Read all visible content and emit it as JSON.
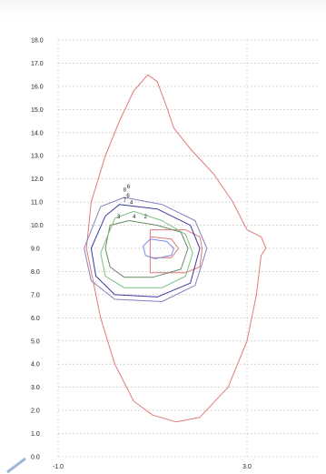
{
  "chart_data": {
    "type": "line",
    "title": "",
    "xlabel": "",
    "ylabel": "",
    "xlim": [
      -1.0,
      4.5
    ],
    "ylim": [
      0.0,
      18.0
    ],
    "x_ticks": [
      "-1.0",
      "3.0"
    ],
    "x_tick_values": [
      -1.0,
      3.0
    ],
    "y_ticks": [
      "0.0",
      "1.0",
      "2.0",
      "3.0",
      "4.0",
      "5.0",
      "6.0",
      "7.0",
      "8.0",
      "9.0",
      "10.0",
      "11.0",
      "12.0",
      "13.0",
      "14.0",
      "15.0",
      "16.0",
      "17.0",
      "18.0"
    ],
    "y_tick_values": [
      0,
      1,
      2,
      3,
      4,
      5,
      6,
      7,
      8,
      9,
      10,
      11,
      12,
      13,
      14,
      15,
      16,
      17,
      18
    ],
    "grid": true,
    "series": [
      {
        "color": "#e07a7a",
        "points": [
          [
            0.9,
            16.5
          ],
          [
            1.1,
            16.2
          ],
          [
            1.3,
            15.1
          ],
          [
            1.45,
            14.2
          ],
          [
            1.8,
            13.3
          ],
          [
            2.3,
            12.2
          ],
          [
            2.7,
            11.0
          ],
          [
            3.0,
            9.8
          ],
          [
            3.3,
            9.5
          ],
          [
            3.4,
            9.0
          ],
          [
            3.3,
            8.7
          ],
          [
            3.2,
            7.0
          ],
          [
            3.0,
            5.0
          ],
          [
            2.6,
            3.0
          ],
          [
            2.0,
            1.7
          ],
          [
            1.5,
            1.5
          ],
          [
            1.0,
            1.8
          ],
          [
            0.6,
            2.4
          ],
          [
            0.2,
            4.0
          ],
          [
            -0.1,
            6.0
          ],
          [
            -0.3,
            8.0
          ],
          [
            -0.4,
            9.0
          ],
          [
            -0.3,
            11.0
          ],
          [
            0.0,
            13.0
          ],
          [
            0.3,
            14.5
          ],
          [
            0.6,
            15.8
          ],
          [
            0.9,
            16.5
          ]
        ]
      },
      {
        "color": "#e07a7a",
        "points": [
          [
            0.95,
            9.8
          ],
          [
            1.7,
            9.8
          ],
          [
            2.0,
            9.5
          ],
          [
            2.05,
            9.0
          ],
          [
            2.0,
            8.2
          ],
          [
            1.7,
            7.95
          ],
          [
            0.95,
            7.95
          ],
          [
            0.95,
            9.8
          ]
        ]
      },
      {
        "color": "#e07a7a",
        "points": [
          [
            0.95,
            9.5
          ],
          [
            1.4,
            9.4
          ],
          [
            1.55,
            9.0
          ],
          [
            1.4,
            8.6
          ],
          [
            0.95,
            8.6
          ]
        ]
      },
      {
        "color": "#7a8ae0",
        "points": [
          [
            0.95,
            9.4
          ],
          [
            1.3,
            9.3
          ],
          [
            1.45,
            9.0
          ],
          [
            1.4,
            8.7
          ],
          [
            1.05,
            8.55
          ],
          [
            0.85,
            8.7
          ],
          [
            0.8,
            9.1
          ],
          [
            0.95,
            9.4
          ]
        ]
      },
      {
        "color": "#6a8a6a",
        "points": [
          [
            0.1,
            10.0
          ],
          [
            0.5,
            10.2
          ],
          [
            1.1,
            10.0
          ],
          [
            1.6,
            9.7
          ],
          [
            1.75,
            9.0
          ],
          [
            1.6,
            8.1
          ],
          [
            1.0,
            7.75
          ],
          [
            0.4,
            7.75
          ],
          [
            0.1,
            8.2
          ],
          [
            0.0,
            9.0
          ],
          [
            0.1,
            10.0
          ]
        ]
      },
      {
        "color": "#7fbf7f",
        "points": [
          [
            0.2,
            10.3
          ],
          [
            0.6,
            10.6
          ],
          [
            1.2,
            10.2
          ],
          [
            1.7,
            9.6
          ],
          [
            1.85,
            8.8
          ],
          [
            1.7,
            7.8
          ],
          [
            1.2,
            7.3
          ],
          [
            0.4,
            7.3
          ],
          [
            0.0,
            7.8
          ],
          [
            -0.1,
            8.8
          ],
          [
            0.2,
            10.3
          ]
        ]
      },
      {
        "color": "#3a3aa0",
        "points": [
          [
            0.0,
            10.4
          ],
          [
            0.3,
            10.9
          ],
          [
            1.1,
            10.7
          ],
          [
            1.8,
            10.0
          ],
          [
            2.0,
            9.0
          ],
          [
            1.8,
            7.5
          ],
          [
            1.1,
            6.9
          ],
          [
            0.2,
            7.0
          ],
          [
            -0.2,
            7.8
          ],
          [
            -0.3,
            9.0
          ],
          [
            0.0,
            10.4
          ]
        ]
      },
      {
        "color": "#8a7fc0",
        "points": [
          [
            -0.1,
            10.8
          ],
          [
            0.4,
            11.2
          ],
          [
            1.2,
            10.9
          ],
          [
            1.9,
            10.2
          ],
          [
            2.15,
            9.0
          ],
          [
            1.9,
            7.4
          ],
          [
            1.2,
            6.7
          ],
          [
            0.2,
            6.8
          ],
          [
            -0.3,
            7.6
          ],
          [
            -0.45,
            9.0
          ],
          [
            -0.1,
            10.8
          ]
        ]
      }
    ],
    "contour_labels": [
      {
        "text": "3",
        "x": 0.25,
        "y": 10.3
      },
      {
        "text": "4",
        "x": 0.58,
        "y": 10.3
      },
      {
        "text": "2",
        "x": 0.82,
        "y": 10.3
      },
      {
        "text": "7",
        "x": 0.38,
        "y": 11.0
      },
      {
        "text": "6",
        "x": 0.45,
        "y": 11.2
      },
      {
        "text": "4",
        "x": 0.52,
        "y": 10.9
      },
      {
        "text": "8",
        "x": 0.38,
        "y": 11.45
      },
      {
        "text": "6",
        "x": 0.46,
        "y": 11.6
      }
    ]
  }
}
